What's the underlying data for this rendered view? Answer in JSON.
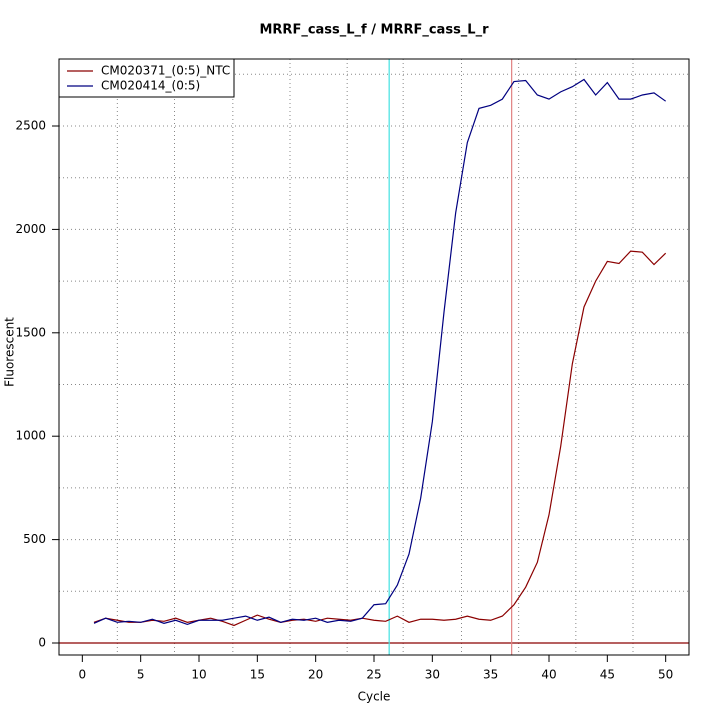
{
  "chart_data": {
    "type": "line",
    "title": "MRRF_cass_L_f / MRRF_cass_L_r",
    "xlabel": "Cycle",
    "ylabel": "Fluorescent",
    "x": [
      1,
      2,
      3,
      4,
      5,
      6,
      7,
      8,
      9,
      10,
      11,
      12,
      13,
      14,
      15,
      16,
      17,
      18,
      19,
      20,
      21,
      22,
      23,
      24,
      25,
      26,
      27,
      28,
      29,
      30,
      31,
      32,
      33,
      34,
      35,
      36,
      37,
      38,
      39,
      40,
      41,
      42,
      43,
      44,
      45,
      46,
      47,
      48,
      49,
      50
    ],
    "series": [
      {
        "name": "CM020371_(0:5)_NTC",
        "color": "#8b0000",
        "values": [
          100,
          120,
          110,
          100,
          100,
          110,
          105,
          120,
          100,
          110,
          120,
          105,
          85,
          110,
          135,
          115,
          100,
          110,
          115,
          105,
          120,
          115,
          110,
          120,
          110,
          105,
          130,
          100,
          115,
          115,
          110,
          115,
          130,
          115,
          110,
          130,
          185,
          270,
          390,
          620,
          950,
          1350,
          1625,
          1750,
          1845,
          1835,
          1895,
          1890,
          1830,
          1885
        ]
      },
      {
        "name": "CM020414_(0:5)",
        "color": "#000080",
        "values": [
          95,
          120,
          100,
          105,
          100,
          115,
          95,
          110,
          90,
          110,
          110,
          110,
          120,
          130,
          110,
          125,
          100,
          115,
          110,
          120,
          100,
          110,
          105,
          120,
          185,
          190,
          280,
          430,
          700,
          1070,
          1600,
          2080,
          2420,
          2585,
          2600,
          2630,
          2715,
          2720,
          2650,
          2630,
          2665,
          2690,
          2725,
          2650,
          2710,
          2630,
          2630,
          2650,
          2660,
          2620
        ]
      }
    ],
    "xlim": [
      -2,
      52
    ],
    "ylim": [
      -58,
      2824
    ],
    "xticks": [
      0,
      5,
      10,
      15,
      20,
      25,
      30,
      35,
      40,
      45,
      50
    ],
    "yticks": [
      0,
      500,
      1000,
      1500,
      2000,
      2500
    ],
    "xgrid": [
      3,
      7.9,
      12.9,
      17.8,
      22.7,
      27.5,
      32.5,
      37.4,
      42.3,
      47.2
    ],
    "ygrid": [
      250,
      500,
      750,
      1000,
      1250,
      1500,
      1750,
      2000,
      2250,
      2500,
      2750
    ],
    "hlines": [
      {
        "value": 0,
        "color": "#8b0000"
      }
    ],
    "vlines": [
      {
        "value": 26.3,
        "color": "#40e0e0"
      },
      {
        "value": 36.8,
        "color": "#e08080"
      }
    ],
    "legend": "top-left"
  }
}
